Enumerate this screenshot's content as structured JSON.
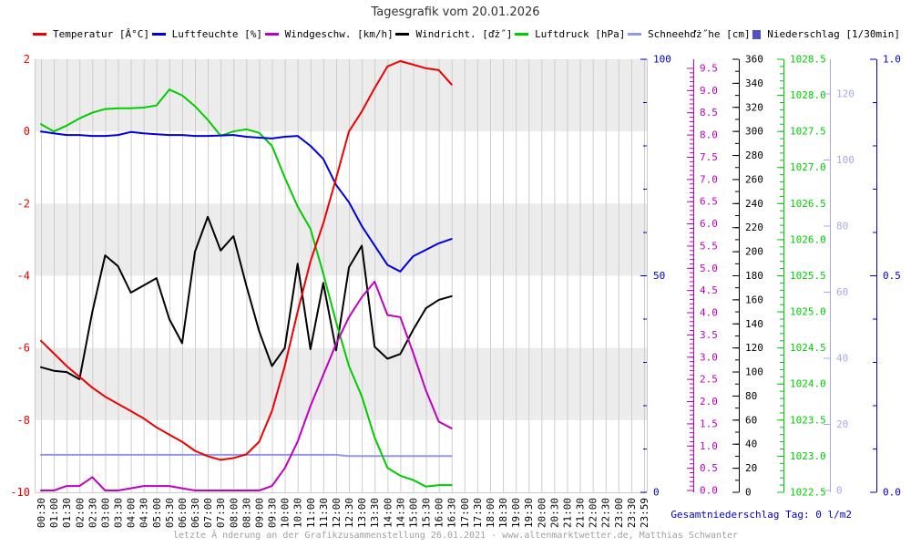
{
  "page": {
    "title": "Tagesgrafik vom 20.01.2026",
    "total_precip_label": "Gesamtniederschlag Tag: 0 l/m2",
    "footer": "letzte Ă nderung an der Grafikzusammenstellung 26.01.2021 - www.altenmarktwetter.de, Matthias Schwanter"
  },
  "legend": {
    "items": [
      {
        "label": "Temperatur [Â°C]",
        "color": "#ee0000",
        "swatch": "line"
      },
      {
        "label": "Luftfeuchte [%]",
        "color": "#0000dd",
        "swatch": "line"
      },
      {
        "label": "Windgeschw. [km/h]",
        "color": "#c000c0",
        "swatch": "line"
      },
      {
        "label": "Windricht. [ďż˝]",
        "color": "#000000",
        "swatch": "line"
      },
      {
        "label": "Luftdruck [hPa]",
        "color": "#00cc00",
        "swatch": "line"
      },
      {
        "label": "Schneehďż˝he [cm]",
        "color": "#9696ea",
        "swatch": "line"
      },
      {
        "label": "Niederschlag [1/30min]",
        "color": "#5050c8",
        "swatch": "square"
      }
    ]
  },
  "chart_data": {
    "type": "line",
    "title": "Tagesgrafik vom 20.01.2026",
    "x_tick_labels": [
      "00:30",
      "01:00",
      "01:30",
      "02:00",
      "02:30",
      "03:00",
      "03:30",
      "04:00",
      "04:30",
      "05:00",
      "05:30",
      "06:00",
      "06:30",
      "07:00",
      "07:30",
      "08:00",
      "08:30",
      "09:00",
      "09:30",
      "10:00",
      "10:30",
      "11:00",
      "11:30",
      "12:00",
      "12:30",
      "13:00",
      "13:30",
      "14:00",
      "14:30",
      "15:00",
      "15:30",
      "16:00",
      "16:30",
      "17:00",
      "17:30",
      "18:00",
      "18:30",
      "19:00",
      "19:30",
      "20:00",
      "20:30",
      "21:00",
      "21:30",
      "22:00",
      "22:30",
      "23:00",
      "23:30",
      "23:59"
    ],
    "layout": {
      "plot_band_color": "#ececec",
      "grid_color": "#cccccc",
      "legend_position": "top",
      "data_ends_at": "16:30"
    },
    "axes": {
      "temp": {
        "side": "left",
        "range": [
          -10,
          2
        ],
        "tick_labels": [
          "2",
          "0",
          "-2",
          "-4",
          "-6",
          "-8",
          "-10"
        ],
        "color": "#ee0000"
      },
      "humidity": {
        "side": "right",
        "range": [
          0,
          100
        ],
        "tick_labels": [
          "100",
          "50",
          "0"
        ],
        "minor_step": 10,
        "color": "#0000cc"
      },
      "windspeed": {
        "side": "right",
        "range": [
          0,
          9.5
        ],
        "tick_labels": [
          "9.5",
          "9.0",
          "8.5",
          "8.0",
          "7.5",
          "7.0",
          "6.5",
          "6.0",
          "5.5",
          "5.0",
          "4.5",
          "4.0",
          "3.5",
          "3.0",
          "2.5",
          "2.0",
          "1.5",
          "1.0",
          "0.5",
          "0.0"
        ],
        "minor_step": 0.1,
        "color": "#c000c0"
      },
      "winddir": {
        "side": "right",
        "range": [
          0,
          360
        ],
        "tick_labels": [
          "360",
          "340",
          "320",
          "300",
          "280",
          "260",
          "240",
          "220",
          "200",
          "180",
          "160",
          "140",
          "120",
          "100",
          "80",
          "60",
          "40",
          "20",
          "0"
        ],
        "minor_step": 10,
        "color": "#000000"
      },
      "pressure": {
        "side": "right",
        "range": [
          1022.5,
          1028.5
        ],
        "tick_labels": [
          "1028.5",
          "1028.0",
          "1027.5",
          "1027.0",
          "1026.5",
          "1026.0",
          "1025.5",
          "1025.0",
          "1024.5",
          "1024.0",
          "1023.5",
          "1023.0",
          "1022.5"
        ],
        "minor_step": 0.1,
        "color": "#00cc00"
      },
      "snow": {
        "side": "right",
        "range": [
          0,
          130
        ],
        "tick_labels": [
          "120",
          "100",
          "80",
          "60",
          "40",
          "20",
          "0"
        ],
        "color": "#a8a8e8"
      },
      "precip": {
        "side": "right",
        "range": [
          0,
          1
        ],
        "tick_labels": [
          "1.0",
          "0.5",
          "0.0"
        ],
        "minor_step": 0.1,
        "color": "#0000cc"
      }
    },
    "series": [
      {
        "name": "Temperatur",
        "unit": "Â°C",
        "axis": "temp",
        "color": "#ee0000",
        "render": "line",
        "values": [
          -5.8,
          -6.15,
          -6.5,
          -6.8,
          -7.1,
          -7.35,
          -7.55,
          -7.75,
          -7.95,
          -8.2,
          -8.4,
          -8.6,
          -8.85,
          -9.0,
          -9.1,
          -9.05,
          -8.95,
          -8.6,
          -7.75,
          -6.5,
          -5.0,
          -3.6,
          -2.55,
          -1.3,
          0.0,
          0.55,
          1.2,
          1.8,
          1.95,
          1.85,
          1.75,
          1.7,
          1.3
        ]
      },
      {
        "name": "Luftfeuchte",
        "unit": "%",
        "axis": "humidity",
        "color": "#0000dd",
        "render": "line",
        "values": [
          83.3,
          82.9,
          82.5,
          82.5,
          82.3,
          82.3,
          82.5,
          83.2,
          82.9,
          82.7,
          82.5,
          82.5,
          82.3,
          82.3,
          82.4,
          82.5,
          82.1,
          81.9,
          81.7,
          82.1,
          82.3,
          80.0,
          77.0,
          71.0,
          67.0,
          61.5,
          57.0,
          52.5,
          51.0,
          54.5,
          56.0,
          57.5,
          58.5
        ]
      },
      {
        "name": "Windgeschw.",
        "unit": "km/h",
        "axis": "windspeed",
        "color": "#c000c0",
        "render": "line",
        "values": [
          0.0,
          0.0,
          0.1,
          0.1,
          0.3,
          0.0,
          0.0,
          0.05,
          0.1,
          0.1,
          0.1,
          0.05,
          0.0,
          0.0,
          0.0,
          0.0,
          0.0,
          0.0,
          0.1,
          0.5,
          1.1,
          1.9,
          2.6,
          3.3,
          3.9,
          4.35,
          4.7,
          3.95,
          3.9,
          3.1,
          2.25,
          1.55,
          1.4
        ]
      },
      {
        "name": "Windricht.",
        "unit": "deg",
        "axis": "winddir",
        "color": "#000000",
        "render": "line",
        "values": [
          104,
          101,
          100,
          94,
          150,
          197,
          188,
          166,
          172,
          178,
          144,
          124,
          200,
          229,
          201,
          213,
          172,
          134,
          105,
          120,
          190,
          119,
          174,
          118,
          187,
          205,
          121,
          111,
          115,
          135,
          153,
          160,
          163
        ]
      },
      {
        "name": "Luftdruck",
        "unit": "hPa",
        "axis": "pressure",
        "color": "#00cc00",
        "render": "line",
        "values": [
          1027.6,
          1027.5,
          1027.58,
          1027.68,
          1027.76,
          1027.81,
          1027.82,
          1027.82,
          1027.83,
          1027.86,
          1028.08,
          1028.0,
          1027.85,
          1027.66,
          1027.44,
          1027.5,
          1027.53,
          1027.48,
          1027.3,
          1026.86,
          1026.46,
          1026.15,
          1025.53,
          1024.86,
          1024.25,
          1023.83,
          1023.26,
          1022.84,
          1022.73,
          1022.67,
          1022.58,
          1022.6,
          1022.6
        ]
      },
      {
        "name": "Schneehoehe",
        "unit": "cm",
        "axis": "snow",
        "color": "#9696ea",
        "render": "line",
        "values": [
          10.8,
          10.8,
          10.8,
          10.8,
          10.8,
          10.8,
          10.8,
          10.8,
          10.8,
          10.8,
          10.8,
          10.8,
          10.8,
          10.8,
          10.8,
          10.8,
          10.8,
          10.8,
          10.8,
          10.8,
          10.8,
          10.8,
          10.8,
          10.8,
          10.4,
          10.4,
          10.4,
          10.4,
          10.4,
          10.4,
          10.4,
          10.4,
          10.4
        ]
      },
      {
        "name": "Niederschlag",
        "unit": "1/30min",
        "axis": "precip",
        "color": "#5050c8",
        "render": "bars",
        "values": [
          0,
          0,
          0,
          0,
          0,
          0,
          0,
          0,
          0,
          0,
          0,
          0,
          0,
          0,
          0,
          0,
          0,
          0,
          0,
          0,
          0,
          0,
          0,
          0,
          0,
          0,
          0,
          0,
          0,
          0,
          0,
          0,
          0
        ]
      }
    ]
  }
}
